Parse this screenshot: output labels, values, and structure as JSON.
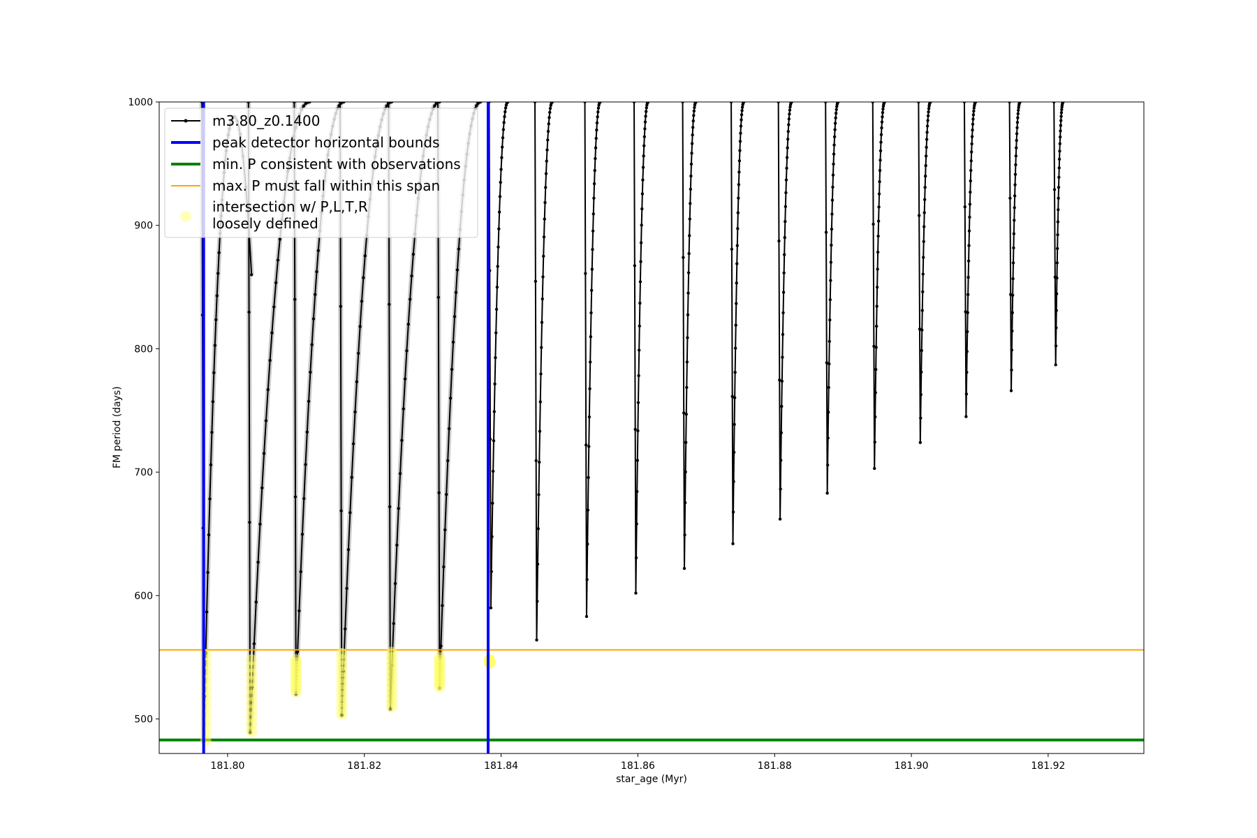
{
  "chart_data": {
    "type": "line",
    "xlabel": "star_age (Myr)",
    "ylabel": "FM period (days)",
    "xlim": [
      181.79,
      181.934
    ],
    "ylim": [
      472,
      1000
    ],
    "xticks": [
      {
        "value": 181.8,
        "label": "181.80"
      },
      {
        "value": 181.82,
        "label": "181.82"
      },
      {
        "value": 181.84,
        "label": "181.84"
      },
      {
        "value": 181.86,
        "label": "181.86"
      },
      {
        "value": 181.88,
        "label": "181.88"
      },
      {
        "value": 181.9,
        "label": "181.90"
      },
      {
        "value": 181.92,
        "label": "181.92"
      }
    ],
    "yticks": [
      {
        "value": 500,
        "label": "500"
      },
      {
        "value": 600,
        "label": "600"
      },
      {
        "value": 700,
        "label": "700"
      },
      {
        "value": 800,
        "label": "800"
      },
      {
        "value": 900,
        "label": "900"
      },
      {
        "value": 1000,
        "label": "1000"
      }
    ],
    "grid": false,
    "legend_position": "top-left",
    "legend": [
      {
        "label": "m3.80_z0.1400",
        "kind": "line-marker",
        "color": "#000000"
      },
      {
        "label": "peak detector horizontal bounds",
        "kind": "line",
        "color": "#0000ff"
      },
      {
        "label": "min. P consistent with observations",
        "kind": "line",
        "color": "#008000"
      },
      {
        "label": "max. P must fall within this span",
        "kind": "line",
        "color": "#ffa500"
      },
      {
        "label": "intersection w/ P,L,T,R\nloosely defined",
        "kind": "circle",
        "color": "#ffff66"
      }
    ],
    "series": [
      {
        "name": "m3.80_z0.1400",
        "color": "#000000",
        "shade_color": "#cccccc",
        "pulses": [
          {
            "start": 181.7965,
            "min": 482,
            "peak_x": 181.801,
            "peak_y": 988,
            "right_x": 181.8035,
            "right_y": 860
          },
          {
            "start": 181.8033,
            "min": 489,
            "peak_x": 181.812,
            "peak_y": 1000,
            "right_x": 181.812,
            "right_y": 1000
          },
          {
            "start": 181.81,
            "min": 520,
            "peak_x": 181.817,
            "peak_y": 1000,
            "right_x": 181.817,
            "right_y": 1000
          },
          {
            "start": 181.8167,
            "min": 503,
            "peak_x": 181.824,
            "peak_y": 1000,
            "right_x": 181.824,
            "right_y": 1000
          },
          {
            "start": 181.8238,
            "min": 508,
            "peak_x": 181.831,
            "peak_y": 1000,
            "right_x": 181.831,
            "right_y": 1000
          },
          {
            "start": 181.831,
            "min": 525,
            "peak_x": 181.837,
            "peak_y": 1000,
            "right_x": 181.837,
            "right_y": 1000
          },
          {
            "start": 181.8385,
            "min": 590,
            "peak_x": 181.841,
            "peak_y": 1000,
            "right_x": 181.841,
            "right_y": 1000
          },
          {
            "start": 181.8452,
            "min": 564,
            "peak_x": 181.8475,
            "peak_y": 1000,
            "right_x": 181.8475,
            "right_y": 1000
          },
          {
            "start": 181.8525,
            "min": 583,
            "peak_x": 181.8545,
            "peak_y": 1000,
            "right_x": 181.8545,
            "right_y": 1000
          },
          {
            "start": 181.8597,
            "min": 602,
            "peak_x": 181.8615,
            "peak_y": 1000,
            "right_x": 181.8615,
            "right_y": 1000
          },
          {
            "start": 181.8668,
            "min": 622,
            "peak_x": 181.8685,
            "peak_y": 1000,
            "right_x": 181.8685,
            "right_y": 1000
          },
          {
            "start": 181.8739,
            "min": 642,
            "peak_x": 181.8755,
            "peak_y": 1000,
            "right_x": 181.8755,
            "right_y": 1000
          },
          {
            "start": 181.8808,
            "min": 662,
            "peak_x": 181.8825,
            "peak_y": 1000,
            "right_x": 181.8825,
            "right_y": 1000
          },
          {
            "start": 181.8877,
            "min": 683,
            "peak_x": 181.8893,
            "peak_y": 1000,
            "right_x": 181.8893,
            "right_y": 1000
          },
          {
            "start": 181.8946,
            "min": 703,
            "peak_x": 181.8961,
            "peak_y": 1000,
            "right_x": 181.8961,
            "right_y": 1000
          },
          {
            "start": 181.9013,
            "min": 724,
            "peak_x": 181.9028,
            "peak_y": 1000,
            "right_x": 181.9028,
            "right_y": 1000
          },
          {
            "start": 181.908,
            "min": 745,
            "peak_x": 181.9094,
            "peak_y": 1000,
            "right_x": 181.9094,
            "right_y": 1000
          },
          {
            "start": 181.9146,
            "min": 766,
            "peak_x": 181.9159,
            "peak_y": 1000,
            "right_x": 181.9159,
            "right_y": 1000
          },
          {
            "start": 181.9211,
            "min": 787,
            "peak_x": 181.9222,
            "peak_y": 1000,
            "right_x": 181.9222,
            "right_y": 1000
          }
        ]
      }
    ],
    "vertical_lines": [
      {
        "name": "peak detector horizontal bounds",
        "x": 181.7965,
        "color": "#0000ff"
      },
      {
        "name": "peak detector horizontal bounds",
        "x": 181.8381,
        "color": "#0000ff"
      }
    ],
    "horizontal_lines": [
      {
        "name": "min. P consistent with observations",
        "y": 483,
        "color": "#008000"
      },
      {
        "name": "max. P must fall within this span",
        "y": 556,
        "color": "#ffa500"
      }
    ],
    "intersections": [
      {
        "x": 181.7968,
        "y1": 482,
        "y2": 552
      },
      {
        "x": 181.8035,
        "y1": 490,
        "y2": 548
      },
      {
        "x": 181.81,
        "y1": 522,
        "y2": 548
      },
      {
        "x": 181.8167,
        "y1": 504,
        "y2": 553
      },
      {
        "x": 181.824,
        "y1": 510,
        "y2": 554
      },
      {
        "x": 181.831,
        "y1": 526,
        "y2": 550
      },
      {
        "x": 181.8383,
        "y1": 545,
        "y2": 548
      }
    ]
  }
}
